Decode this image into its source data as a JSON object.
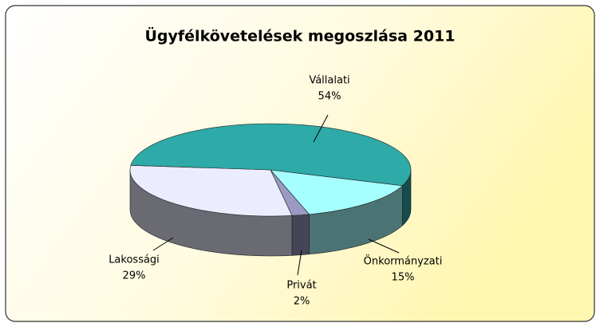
{
  "chart_data": {
    "type": "pie",
    "title": "Ügyfélkövetelések megoszlása 2011",
    "categories": [
      "Önkormányzati",
      "Privát",
      "Lakossági",
      "Vállalati"
    ],
    "values": [
      15,
      2,
      29,
      54
    ],
    "value_labels": [
      "15%",
      "2%",
      "29%",
      "54%"
    ],
    "colors": [
      "#a6ffff",
      "#9a9ac4",
      "#ececff",
      "#2eaaa8"
    ]
  }
}
